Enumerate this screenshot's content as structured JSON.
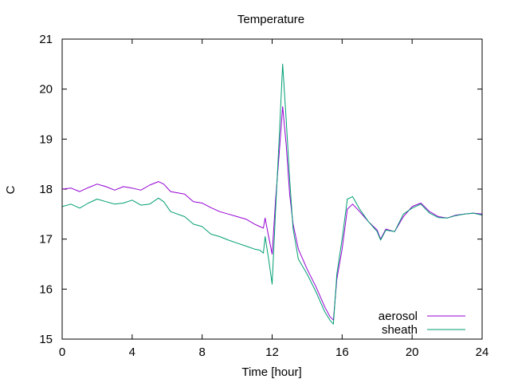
{
  "chart_data": {
    "type": "line",
    "title": "Temperature",
    "xlabel": "Time [hour]",
    "ylabel": "C",
    "xlim": [
      0,
      24
    ],
    "ylim": [
      15,
      21
    ],
    "xticks": [
      0,
      4,
      8,
      12,
      16,
      20,
      24
    ],
    "yticks": [
      15,
      16,
      17,
      18,
      19,
      20,
      21
    ],
    "grid": false,
    "legend_position": "bottom-right",
    "series": [
      {
        "name": "aerosol",
        "color": "#9400d3",
        "x": [
          0,
          0.5,
          1,
          1.5,
          2,
          2.5,
          3,
          3.5,
          4,
          4.5,
          5,
          5.5,
          5.8,
          6.2,
          7,
          7.5,
          8,
          8.5,
          9,
          9.5,
          10,
          10.5,
          11,
          11.3,
          11.5,
          11.6,
          11.8,
          12,
          12.2,
          12.4,
          12.6,
          12.8,
          13,
          13.2,
          13.5,
          14,
          14.5,
          15,
          15.3,
          15.5,
          15.7,
          16,
          16.3,
          16.6,
          17,
          17.5,
          18,
          18.2,
          18.5,
          19,
          19.5,
          20,
          20.5,
          21,
          21.5,
          22,
          22.5,
          23,
          23.5,
          24
        ],
        "y": [
          18.0,
          18.02,
          17.95,
          18.03,
          18.1,
          18.05,
          17.98,
          18.05,
          18.02,
          17.98,
          18.08,
          18.15,
          18.1,
          17.95,
          17.9,
          17.75,
          17.72,
          17.63,
          17.55,
          17.5,
          17.45,
          17.4,
          17.3,
          17.25,
          17.22,
          17.42,
          17.05,
          16.7,
          17.8,
          18.7,
          19.65,
          18.9,
          17.9,
          17.3,
          16.8,
          16.4,
          16.05,
          15.65,
          15.45,
          15.38,
          16.2,
          16.8,
          17.6,
          17.7,
          17.55,
          17.35,
          17.18,
          17.0,
          17.2,
          17.15,
          17.45,
          17.65,
          17.72,
          17.55,
          17.45,
          17.42,
          17.48,
          17.5,
          17.52,
          17.5
        ]
      },
      {
        "name": "sheath",
        "color": "#009e73",
        "x": [
          0,
          0.5,
          1,
          1.5,
          2,
          2.5,
          3,
          3.5,
          4,
          4.5,
          5,
          5.5,
          5.8,
          6.2,
          7,
          7.5,
          8,
          8.5,
          9,
          9.5,
          10,
          10.5,
          11,
          11.3,
          11.5,
          11.6,
          11.8,
          12,
          12.2,
          12.4,
          12.6,
          12.8,
          13,
          13.2,
          13.5,
          14,
          14.5,
          15,
          15.3,
          15.5,
          15.7,
          16,
          16.3,
          16.6,
          17,
          17.5,
          18,
          18.2,
          18.5,
          19,
          19.5,
          20,
          20.5,
          21,
          21.5,
          22,
          22.5,
          23,
          23.5,
          24
        ],
        "y": [
          17.65,
          17.7,
          17.62,
          17.72,
          17.8,
          17.75,
          17.7,
          17.72,
          17.78,
          17.68,
          17.7,
          17.82,
          17.75,
          17.55,
          17.45,
          17.3,
          17.25,
          17.1,
          17.05,
          16.98,
          16.92,
          16.86,
          16.8,
          16.78,
          16.72,
          17.05,
          16.6,
          16.1,
          17.6,
          19.0,
          20.5,
          19.4,
          18.2,
          17.2,
          16.6,
          16.3,
          15.95,
          15.55,
          15.38,
          15.3,
          16.3,
          17.0,
          17.8,
          17.85,
          17.6,
          17.35,
          17.15,
          16.98,
          17.18,
          17.15,
          17.5,
          17.62,
          17.7,
          17.52,
          17.43,
          17.42,
          17.47,
          17.5,
          17.52,
          17.48
        ]
      }
    ]
  }
}
